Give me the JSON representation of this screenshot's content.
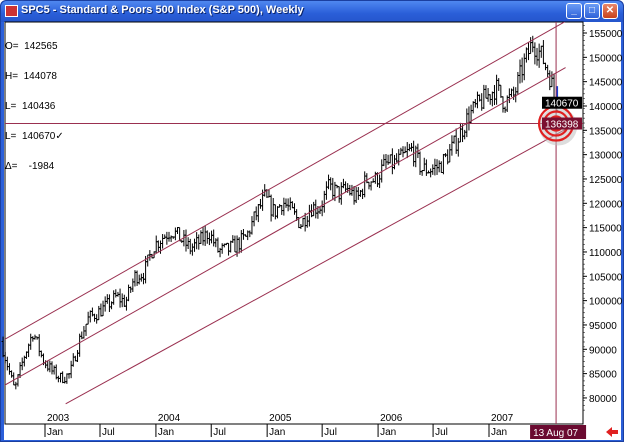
{
  "window": {
    "title": "SPC5 - Standard & Poors 500 Index (S&P 500), Weekly",
    "buttons": [
      "minimize",
      "maximize",
      "close"
    ]
  },
  "ohlc_panel": {
    "lines": [
      "O=  142565",
      "H=  144078",
      "L=  140436",
      "L=  140670✓",
      "Δ=    -1984"
    ]
  },
  "chart_data": {
    "type": "ohlc",
    "title": "SPC5 - Standard & Poors 500 Index (S&P 500), Weekly",
    "ylim": [
      77000,
      157500
    ],
    "yticks": [
      80000,
      85000,
      90000,
      95000,
      100000,
      105000,
      110000,
      115000,
      120000,
      125000,
      130000,
      135000,
      140000,
      145000,
      150000,
      155000
    ],
    "xlim": [
      "2002-08-15",
      "2007-09-10"
    ],
    "year_labels": [
      {
        "label": "2003",
        "date": "2003-01-01"
      },
      {
        "label": "2004",
        "date": "2004-01-01"
      },
      {
        "label": "2005",
        "date": "2005-01-01"
      },
      {
        "label": "2006",
        "date": "2006-01-01"
      },
      {
        "label": "2007",
        "date": "2007-01-01"
      }
    ],
    "month_labels": [
      {
        "label": "Jan",
        "date": "2003-01-01"
      },
      {
        "label": "Jul",
        "date": "2003-07-01"
      },
      {
        "label": "Jan",
        "date": "2004-01-01"
      },
      {
        "label": "Jul",
        "date": "2004-07-01"
      },
      {
        "label": "Jan",
        "date": "2005-01-01"
      },
      {
        "label": "Jul",
        "date": "2005-07-01"
      },
      {
        "label": "Jan",
        "date": "2006-01-01"
      },
      {
        "label": "Jul",
        "date": "2006-07-01"
      },
      {
        "label": "Jan",
        "date": "2007-01-01"
      }
    ],
    "monthly_closes": [
      [
        "2002-08",
        91600
      ],
      [
        "2002-09",
        81500
      ],
      [
        "2002-10",
        88500
      ],
      [
        "2002-11",
        93600
      ],
      [
        "2002-12",
        88000
      ],
      [
        "2003-01",
        85500
      ],
      [
        "2003-02",
        84100
      ],
      [
        "2003-03",
        84800
      ],
      [
        "2003-04",
        91700
      ],
      [
        "2003-05",
        96400
      ],
      [
        "2003-06",
        97500
      ],
      [
        "2003-07",
        99000
      ],
      [
        "2003-08",
        100800
      ],
      [
        "2003-09",
        99600
      ],
      [
        "2003-10",
        105000
      ],
      [
        "2003-11",
        105800
      ],
      [
        "2003-12",
        111200
      ],
      [
        "2004-01",
        113100
      ],
      [
        "2004-02",
        114500
      ],
      [
        "2004-03",
        112600
      ],
      [
        "2004-04",
        110700
      ],
      [
        "2004-05",
        112100
      ],
      [
        "2004-06",
        114100
      ],
      [
        "2004-07",
        110200
      ],
      [
        "2004-08",
        110400
      ],
      [
        "2004-09",
        111500
      ],
      [
        "2004-10",
        113000
      ],
      [
        "2004-11",
        117400
      ],
      [
        "2004-12",
        121200
      ],
      [
        "2005-01",
        118100
      ],
      [
        "2005-02",
        120400
      ],
      [
        "2005-03",
        118100
      ],
      [
        "2005-04",
        115700
      ],
      [
        "2005-05",
        119200
      ],
      [
        "2005-06",
        119100
      ],
      [
        "2005-07",
        123400
      ],
      [
        "2005-08",
        122000
      ],
      [
        "2005-09",
        122900
      ],
      [
        "2005-10",
        120700
      ],
      [
        "2005-11",
        124900
      ],
      [
        "2005-12",
        124800
      ],
      [
        "2006-01",
        128000
      ],
      [
        "2006-02",
        128100
      ],
      [
        "2006-03",
        129500
      ],
      [
        "2006-04",
        131100
      ],
      [
        "2006-05",
        127000
      ],
      [
        "2006-06",
        127000
      ],
      [
        "2006-07",
        127700
      ],
      [
        "2006-08",
        130400
      ],
      [
        "2006-09",
        133600
      ],
      [
        "2006-10",
        137800
      ],
      [
        "2006-11",
        140100
      ],
      [
        "2006-12",
        141800
      ],
      [
        "2007-01",
        143800
      ],
      [
        "2007-02",
        140700
      ],
      [
        "2007-03",
        142100
      ],
      [
        "2007-04",
        148200
      ],
      [
        "2007-05",
        153100
      ],
      [
        "2007-06",
        150300
      ],
      [
        "2007-07",
        145500
      ],
      [
        "2007-08",
        140670
      ]
    ],
    "last_bar": {
      "date": "2007-08-13",
      "open": 142565,
      "high": 144078,
      "low": 140436,
      "close": 140670
    },
    "channel_lines": [
      {
        "from": [
          "2002-08-20",
          92000
        ],
        "to": [
          "2007-09-10",
          157400
        ]
      },
      {
        "from": [
          "2002-08-15",
          82400
        ],
        "to": [
          "2007-09-10",
          147900
        ]
      },
      {
        "from": [
          "2003-03-10",
          78800
        ],
        "to": [
          "2007-09-10",
          135200
        ]
      }
    ],
    "horizontal_line": 136398,
    "cursor_date_label": "13 Aug 07",
    "price_labels": [
      {
        "value": 140670,
        "label": "140670",
        "color": "#000000"
      },
      {
        "value": 136398,
        "label": "136398",
        "color": "#7a1030"
      }
    ],
    "colors": {
      "bars": "#000000",
      "last_bar": "#1a3fd0",
      "lines": "#9a3050",
      "target": "#e02020",
      "cursor_label_bg": "#6a0a30"
    }
  }
}
